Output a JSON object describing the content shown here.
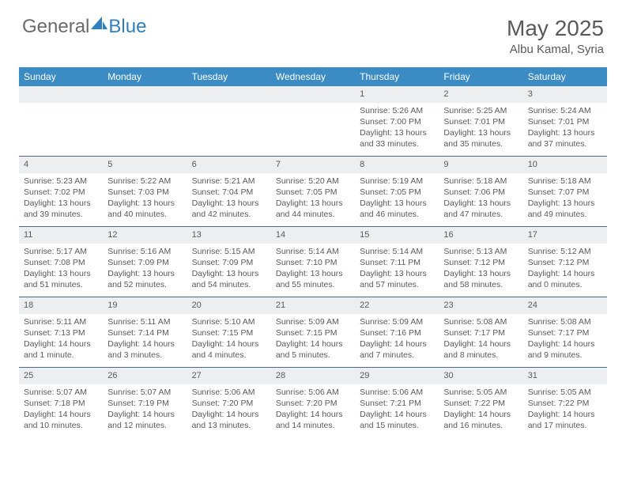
{
  "logo": {
    "text1": "General",
    "text2": "Blue",
    "color_general": "#6b6b6b",
    "color_blue": "#2f7fbf",
    "icon_color": "#2f7fbf"
  },
  "title": "May 2025",
  "location": "Albu Kamal, Syria",
  "colors": {
    "header_bg": "#3b8bc4",
    "header_text": "#ffffff",
    "daynum_bg": "#eceef0",
    "row_border": "#4a6a8a",
    "text": "#5a5a5a"
  },
  "day_names": [
    "Sunday",
    "Monday",
    "Tuesday",
    "Wednesday",
    "Thursday",
    "Friday",
    "Saturday"
  ],
  "weeks": [
    [
      {
        "n": "",
        "lines": []
      },
      {
        "n": "",
        "lines": []
      },
      {
        "n": "",
        "lines": []
      },
      {
        "n": "",
        "lines": []
      },
      {
        "n": "1",
        "lines": [
          "Sunrise: 5:26 AM",
          "Sunset: 7:00 PM",
          "Daylight: 13 hours",
          "and 33 minutes."
        ]
      },
      {
        "n": "2",
        "lines": [
          "Sunrise: 5:25 AM",
          "Sunset: 7:01 PM",
          "Daylight: 13 hours",
          "and 35 minutes."
        ]
      },
      {
        "n": "3",
        "lines": [
          "Sunrise: 5:24 AM",
          "Sunset: 7:01 PM",
          "Daylight: 13 hours",
          "and 37 minutes."
        ]
      }
    ],
    [
      {
        "n": "4",
        "lines": [
          "Sunrise: 5:23 AM",
          "Sunset: 7:02 PM",
          "Daylight: 13 hours",
          "and 39 minutes."
        ]
      },
      {
        "n": "5",
        "lines": [
          "Sunrise: 5:22 AM",
          "Sunset: 7:03 PM",
          "Daylight: 13 hours",
          "and 40 minutes."
        ]
      },
      {
        "n": "6",
        "lines": [
          "Sunrise: 5:21 AM",
          "Sunset: 7:04 PM",
          "Daylight: 13 hours",
          "and 42 minutes."
        ]
      },
      {
        "n": "7",
        "lines": [
          "Sunrise: 5:20 AM",
          "Sunset: 7:05 PM",
          "Daylight: 13 hours",
          "and 44 minutes."
        ]
      },
      {
        "n": "8",
        "lines": [
          "Sunrise: 5:19 AM",
          "Sunset: 7:05 PM",
          "Daylight: 13 hours",
          "and 46 minutes."
        ]
      },
      {
        "n": "9",
        "lines": [
          "Sunrise: 5:18 AM",
          "Sunset: 7:06 PM",
          "Daylight: 13 hours",
          "and 47 minutes."
        ]
      },
      {
        "n": "10",
        "lines": [
          "Sunrise: 5:18 AM",
          "Sunset: 7:07 PM",
          "Daylight: 13 hours",
          "and 49 minutes."
        ]
      }
    ],
    [
      {
        "n": "11",
        "lines": [
          "Sunrise: 5:17 AM",
          "Sunset: 7:08 PM",
          "Daylight: 13 hours",
          "and 51 minutes."
        ]
      },
      {
        "n": "12",
        "lines": [
          "Sunrise: 5:16 AM",
          "Sunset: 7:09 PM",
          "Daylight: 13 hours",
          "and 52 minutes."
        ]
      },
      {
        "n": "13",
        "lines": [
          "Sunrise: 5:15 AM",
          "Sunset: 7:09 PM",
          "Daylight: 13 hours",
          "and 54 minutes."
        ]
      },
      {
        "n": "14",
        "lines": [
          "Sunrise: 5:14 AM",
          "Sunset: 7:10 PM",
          "Daylight: 13 hours",
          "and 55 minutes."
        ]
      },
      {
        "n": "15",
        "lines": [
          "Sunrise: 5:14 AM",
          "Sunset: 7:11 PM",
          "Daylight: 13 hours",
          "and 57 minutes."
        ]
      },
      {
        "n": "16",
        "lines": [
          "Sunrise: 5:13 AM",
          "Sunset: 7:12 PM",
          "Daylight: 13 hours",
          "and 58 minutes."
        ]
      },
      {
        "n": "17",
        "lines": [
          "Sunrise: 5:12 AM",
          "Sunset: 7:12 PM",
          "Daylight: 14 hours",
          "and 0 minutes."
        ]
      }
    ],
    [
      {
        "n": "18",
        "lines": [
          "Sunrise: 5:11 AM",
          "Sunset: 7:13 PM",
          "Daylight: 14 hours",
          "and 1 minute."
        ]
      },
      {
        "n": "19",
        "lines": [
          "Sunrise: 5:11 AM",
          "Sunset: 7:14 PM",
          "Daylight: 14 hours",
          "and 3 minutes."
        ]
      },
      {
        "n": "20",
        "lines": [
          "Sunrise: 5:10 AM",
          "Sunset: 7:15 PM",
          "Daylight: 14 hours",
          "and 4 minutes."
        ]
      },
      {
        "n": "21",
        "lines": [
          "Sunrise: 5:09 AM",
          "Sunset: 7:15 PM",
          "Daylight: 14 hours",
          "and 5 minutes."
        ]
      },
      {
        "n": "22",
        "lines": [
          "Sunrise: 5:09 AM",
          "Sunset: 7:16 PM",
          "Daylight: 14 hours",
          "and 7 minutes."
        ]
      },
      {
        "n": "23",
        "lines": [
          "Sunrise: 5:08 AM",
          "Sunset: 7:17 PM",
          "Daylight: 14 hours",
          "and 8 minutes."
        ]
      },
      {
        "n": "24",
        "lines": [
          "Sunrise: 5:08 AM",
          "Sunset: 7:17 PM",
          "Daylight: 14 hours",
          "and 9 minutes."
        ]
      }
    ],
    [
      {
        "n": "25",
        "lines": [
          "Sunrise: 5:07 AM",
          "Sunset: 7:18 PM",
          "Daylight: 14 hours",
          "and 10 minutes."
        ]
      },
      {
        "n": "26",
        "lines": [
          "Sunrise: 5:07 AM",
          "Sunset: 7:19 PM",
          "Daylight: 14 hours",
          "and 12 minutes."
        ]
      },
      {
        "n": "27",
        "lines": [
          "Sunrise: 5:06 AM",
          "Sunset: 7:20 PM",
          "Daylight: 14 hours",
          "and 13 minutes."
        ]
      },
      {
        "n": "28",
        "lines": [
          "Sunrise: 5:06 AM",
          "Sunset: 7:20 PM",
          "Daylight: 14 hours",
          "and 14 minutes."
        ]
      },
      {
        "n": "29",
        "lines": [
          "Sunrise: 5:06 AM",
          "Sunset: 7:21 PM",
          "Daylight: 14 hours",
          "and 15 minutes."
        ]
      },
      {
        "n": "30",
        "lines": [
          "Sunrise: 5:05 AM",
          "Sunset: 7:22 PM",
          "Daylight: 14 hours",
          "and 16 minutes."
        ]
      },
      {
        "n": "31",
        "lines": [
          "Sunrise: 5:05 AM",
          "Sunset: 7:22 PM",
          "Daylight: 14 hours",
          "and 17 minutes."
        ]
      }
    ]
  ]
}
